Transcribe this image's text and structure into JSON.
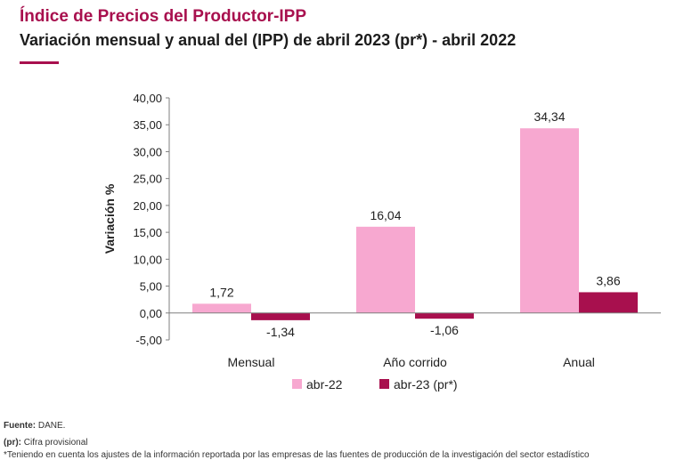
{
  "header": {
    "title": "Índice de Precios del Productor-IPP",
    "subtitle": "Variación mensual y anual del (IPP) de abril 2023 (pr*) - abril 2022"
  },
  "chart_data": {
    "type": "bar",
    "categories": [
      "Mensual",
      "Año corrido",
      "Anual"
    ],
    "series": [
      {
        "name": "abr-22",
        "values": [
          1.72,
          16.04,
          34.34
        ],
        "labels": [
          "1,72",
          "16,04",
          "34,34"
        ],
        "color": "#f7a8d0"
      },
      {
        "name": "abr-23 (pr*)",
        "values": [
          -1.34,
          -1.06,
          3.86
        ],
        "labels": [
          "-1,34",
          "-1,06",
          "3,86"
        ],
        "color": "#a8104e"
      }
    ],
    "ylabel": "Variación %",
    "ylim": [
      -5,
      40
    ],
    "yticks": [
      40,
      35,
      30,
      25,
      20,
      15,
      10,
      5,
      0,
      -5
    ],
    "ytick_labels": [
      "40,00",
      "35,00",
      "30,00",
      "25,00",
      "20,00",
      "15,00",
      "10,00",
      "5,00",
      "0,00",
      "-5,00"
    ],
    "grid": false,
    "legend": "bottom"
  },
  "footer": {
    "source_label": "Fuente:",
    "source_value": "DANE.",
    "pr_label": "(pr):",
    "pr_value": "Cifra provisional",
    "note": "*Teniendo en cuenta los ajustes de la información reportada por las empresas de las fuentes de producción de la investigación del sector estadístico"
  }
}
